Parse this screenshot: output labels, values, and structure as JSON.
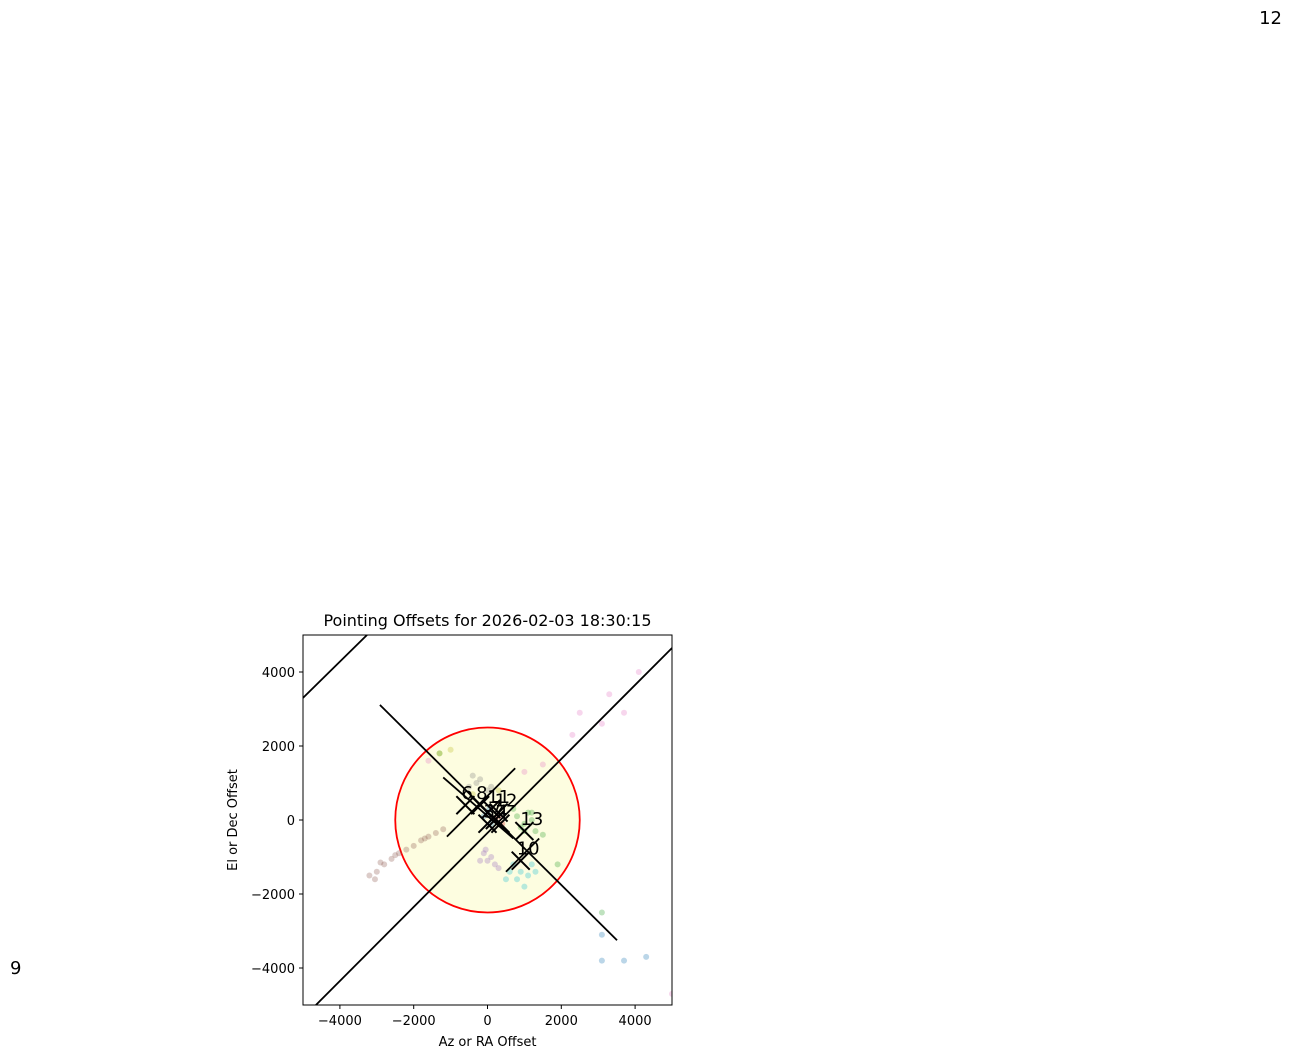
{
  "chart_data": {
    "type": "scatter",
    "title": "Pointing Offsets for 2026-02-03 18:30:15",
    "xlabel": "Az or RA Offset",
    "ylabel": "El or Dec Offset",
    "xlim": [
      -5000,
      5000
    ],
    "ylim": [
      -5000,
      5000
    ],
    "xticks": [
      {
        "value": -4000,
        "label": "−4000"
      },
      {
        "value": -2000,
        "label": "−2000"
      },
      0,
      2000,
      4000
    ],
    "yticks": [
      {
        "value": -4000,
        "label": "−4000"
      },
      {
        "value": -2000,
        "label": "−2000"
      },
      0,
      2000,
      4000
    ],
    "circle": {
      "r": 2500,
      "color": "#ff0000",
      "fill": "#fdfde0"
    },
    "series": [
      {
        "color": "#8c564b",
        "x": [
          -3200,
          -3000,
          -2800,
          -2600,
          -2400,
          -2200,
          -2000,
          -1800,
          -1600,
          -1400,
          -1200,
          -2900,
          -2500,
          -1700,
          -3050
        ],
        "y": [
          -1500,
          -1400,
          -1200,
          -1050,
          -900,
          -800,
          -700,
          -550,
          -450,
          -350,
          -250,
          -1150,
          -950,
          -500,
          -1600
        ]
      },
      {
        "color": "#e377c2",
        "x": [
          1500,
          2300,
          2500,
          3100,
          3300,
          3700,
          4100,
          1000,
          -1600,
          5000
        ],
        "y": [
          1500,
          2300,
          2900,
          2600,
          3400,
          2900,
          4000,
          1300,
          1600,
          -4700
        ]
      },
      {
        "color": "#2ca02c",
        "x": [
          800,
          1000,
          1200,
          900,
          1100,
          1300,
          700,
          1500,
          1000,
          1200,
          3100,
          1900,
          -1300
        ],
        "y": [
          100,
          -100,
          0,
          -200,
          200,
          -300,
          300,
          -400,
          -300,
          200,
          -2500,
          -1200,
          1800
        ]
      },
      {
        "color": "#17becf",
        "x": [
          700,
          900,
          1100,
          800,
          1200,
          600,
          1000,
          1300,
          500
        ],
        "y": [
          -1200,
          -1400,
          -1500,
          -1600,
          -1200,
          -1400,
          -1800,
          -1400,
          -1600
        ]
      },
      {
        "color": "#9467bd",
        "x": [
          -100,
          0,
          100,
          200,
          -50,
          300,
          -200
        ],
        "y": [
          -900,
          -1100,
          -1000,
          -1200,
          -800,
          -1300,
          -1100
        ]
      },
      {
        "color": "#1f77b4",
        "x": [
          0,
          100,
          -100,
          50,
          3100,
          3100,
          3700,
          4300
        ],
        "y": [
          200,
          -100,
          100,
          300,
          -3100,
          -3800,
          -3800,
          -3700
        ]
      },
      {
        "color": "#7f7f7f",
        "x": [
          -300,
          -500,
          -200,
          100,
          0,
          -400
        ],
        "y": [
          1000,
          900,
          1100,
          900,
          800,
          1200
        ]
      },
      {
        "color": "#bcbd22",
        "x": [
          -1000,
          -400,
          300,
          -1300
        ],
        "y": [
          1900,
          700,
          800,
          1800
        ]
      },
      {
        "color": "#d62728",
        "x": [
          300,
          200,
          400
        ],
        "y": [
          100,
          0,
          -100
        ]
      }
    ],
    "lines": [
      {
        "x": [
          -5000,
          -3266
        ],
        "y": [
          3300,
          5000
        ]
      },
      {
        "x": [
          -4650,
          5000
        ],
        "y": [
          -5000,
          4650
        ]
      },
      {
        "x": [
          -2915,
          3510
        ],
        "y": [
          3110,
          -3250
        ]
      },
      {
        "x": [
          -1200,
          700
        ],
        "y": [
          1150,
          -500
        ]
      },
      {
        "x": [
          -1100,
          750
        ],
        "y": [
          -450,
          1400
        ]
      },
      {
        "x": [
          500,
          1400
        ],
        "y": [
          -1400,
          -500
        ]
      }
    ],
    "markers": {
      "x": [
        -600,
        -200,
        100,
        300,
        200,
        350,
        1000,
        900,
        0
      ],
      "y": [
        400,
        400,
        300,
        200,
        0,
        -100,
        -300,
        -1100,
        -100
      ],
      "labels": [
        "6",
        "8",
        "11",
        "12",
        "7",
        "4",
        "13",
        "10",
        "3"
      ]
    },
    "annotations": [
      "12",
      "9"
    ]
  }
}
